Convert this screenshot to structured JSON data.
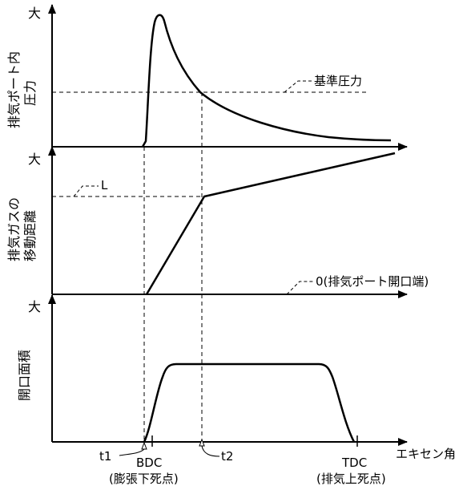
{
  "panels": {
    "pressure": {
      "y_label_line1": "排気ポート内",
      "y_label_line2": "圧力",
      "max_label": "大",
      "reference_label": "基準圧力"
    },
    "distance": {
      "y_label_line1": "排気ガスの",
      "y_label_line2": "移動距離",
      "max_label": "大",
      "l_label": "L",
      "zero_label": "0(排気ポート開口端)"
    },
    "area": {
      "y_label": "開口面積",
      "max_label": "大"
    }
  },
  "x_axis": {
    "label": "エキセン角",
    "t1": "t1",
    "t2": "t2",
    "bdc": "BDC",
    "bdc_note": "(膨張下死点)",
    "tdc": "TDC",
    "tdc_note": "(排気上死点)"
  }
}
